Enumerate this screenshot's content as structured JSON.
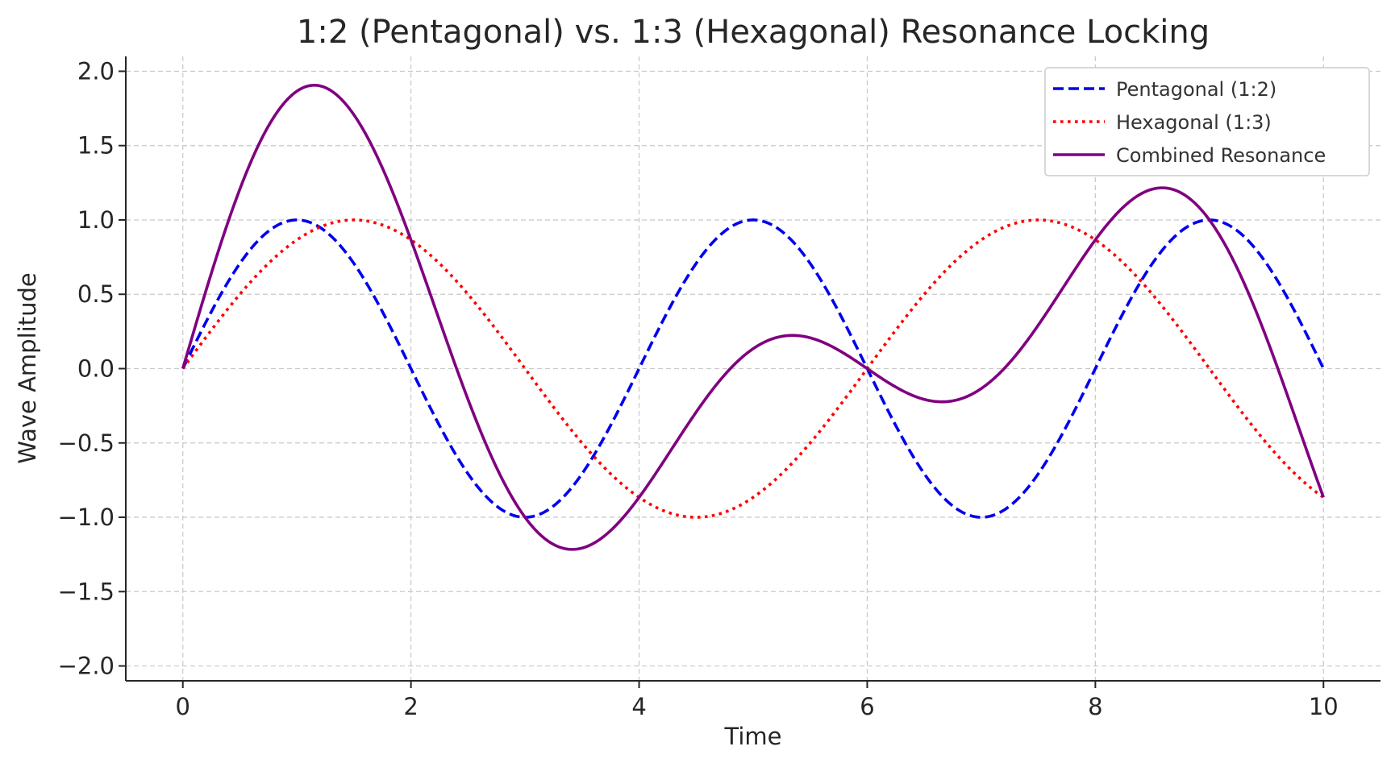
{
  "chart_data": {
    "type": "line",
    "title": "1:2 (Pentagonal) vs. 1:3 (Hexagonal) Resonance Locking",
    "xlabel": "Time",
    "ylabel": "Wave Amplitude",
    "xlim": [
      -0.5,
      10.5
    ],
    "ylim": [
      -2.1,
      2.1
    ],
    "xticks": [
      0,
      2,
      4,
      6,
      8,
      10
    ],
    "xtick_labels": [
      "0",
      "2",
      "4",
      "6",
      "8",
      "10"
    ],
    "yticks": [
      2.0,
      1.5,
      1.0,
      0.5,
      0.0,
      -0.5,
      -1.0,
      -1.5,
      -2.0
    ],
    "ytick_labels": [
      "2.0",
      "1.5",
      "1.0",
      "0.5",
      "0.0",
      "−0.5",
      "−1.0",
      "−1.5",
      "−2.0"
    ],
    "grid": true,
    "legend_position": "top-right",
    "x_range": [
      0,
      10
    ],
    "series": [
      {
        "name": "Pentagonal (1:2)",
        "color": "#0000ee",
        "style": "dashed",
        "function": "sin(pi*t/2)"
      },
      {
        "name": "Hexagonal (1:3)",
        "color": "#ff0000",
        "style": "dotted",
        "function": "sin(pi*t/3)"
      },
      {
        "name": "Combined Resonance",
        "color": "#800080",
        "style": "solid",
        "function": "sin(pi*t/2) + sin(pi*t/3)"
      }
    ]
  }
}
